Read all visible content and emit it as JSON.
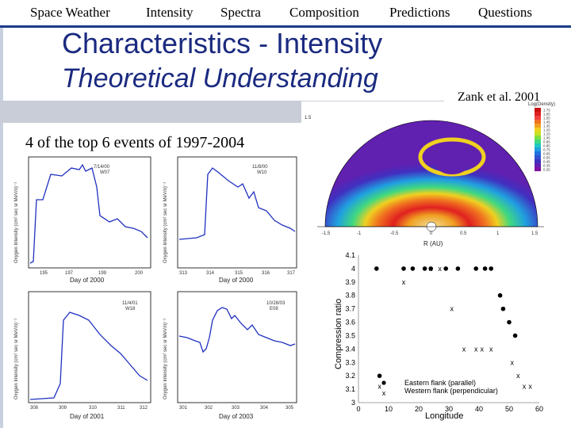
{
  "nav": {
    "items": [
      "Space Weather",
      "Intensity",
      "Spectra",
      "Composition",
      "Predictions",
      "Questions"
    ]
  },
  "slide": {
    "title": "Characteristics - Intensity",
    "subtitle": "Theoretical Understanding",
    "caption": "4 of the top 6 events of 1997-2004",
    "citation": "Zank et al. 2001"
  },
  "intensity_panels": [
    {
      "event": "7/14/00",
      "source": "W07",
      "xlabel": "Day of 2000",
      "xticks": [
        "195",
        "197",
        "199",
        "200"
      ],
      "ylabel": "Oxygen Intensity (cm² sec sr MeV/n)⁻¹"
    },
    {
      "event": "11/8/00",
      "source": "W10",
      "xlabel": "Day of 2000",
      "xticks": [
        "313",
        "314",
        "315",
        "316",
        "317"
      ],
      "ylabel": "Oxygen Intensity (cm² sec sr MeV/n)⁻¹"
    },
    {
      "event": "11/4/01",
      "source": "W18",
      "xlabel": "Day of 2001",
      "xticks": [
        "308",
        "309",
        "310",
        "311",
        "312"
      ],
      "ylabel": "Oxygen Intensity (cm² sec sr MeV/n)⁻¹"
    },
    {
      "event": "10/28/03",
      "source": "E08",
      "xlabel": "Day of 2003",
      "xticks": [
        "301",
        "302",
        "303",
        "304",
        "305"
      ],
      "ylabel": "Oxygen Intensity (cm² sec sr MeV/n)⁻¹"
    }
  ],
  "density_plot": {
    "xlabel": "R (AU)",
    "colorbar_title": "Log(Density)",
    "colorbar_values": [
      "1.75",
      "1.65",
      "1.55",
      "1.45",
      "1.35",
      "1.25",
      "1.15",
      "1.05",
      "0.95",
      "0.85",
      "0.75",
      "0.65",
      "0.55",
      "0.45",
      "0.35",
      "0.25"
    ],
    "colorbar_colors": [
      "#c81010",
      "#e02020",
      "#f04040",
      "#f07020",
      "#f0a020",
      "#f0d020",
      "#c8e020",
      "#80e040",
      "#40d880",
      "#20c8c0",
      "#20a0e0",
      "#2070e0",
      "#3050d0",
      "#4030c0",
      "#6020b0",
      "#8010a0"
    ],
    "xticks": [
      "-1.5",
      "-1",
      "-0.5",
      "0",
      "0.5",
      "1",
      "1.5"
    ],
    "ytick": "1.5"
  },
  "chart_data": {
    "type": "scatter",
    "title": "",
    "xlabel": "Longitude",
    "ylabel": "Compression ratio",
    "xlim": [
      0,
      60
    ],
    "ylim": [
      3,
      4.1
    ],
    "xticks": [
      0,
      10,
      20,
      30,
      40,
      50,
      60
    ],
    "yticks": [
      3,
      3.1,
      3.2,
      3.3,
      3.4,
      3.5,
      3.6,
      3.7,
      3.8,
      3.9,
      4,
      4.1
    ],
    "legend_position": "bottom-center",
    "series": [
      {
        "name": "Eastern flank (parallel)",
        "marker": "dot",
        "x": [
          6,
          7,
          15,
          18,
          22,
          24,
          29,
          33,
          39,
          42,
          44,
          47,
          48,
          50,
          52
        ],
        "y": [
          4.0,
          3.2,
          4.0,
          4.0,
          4.0,
          4.0,
          4.0,
          4.0,
          4.0,
          4.0,
          4.0,
          3.8,
          3.7,
          3.6,
          3.5
        ]
      },
      {
        "name": "Western flank (perpendicular)",
        "marker": "x",
        "x": [
          7,
          15,
          24,
          27,
          31,
          35,
          39,
          41,
          44,
          51,
          53,
          55,
          57
        ],
        "y": [
          3.12,
          3.9,
          4.0,
          4.0,
          3.7,
          3.4,
          3.4,
          3.4,
          3.4,
          3.3,
          3.2,
          3.12,
          3.12
        ]
      }
    ]
  }
}
